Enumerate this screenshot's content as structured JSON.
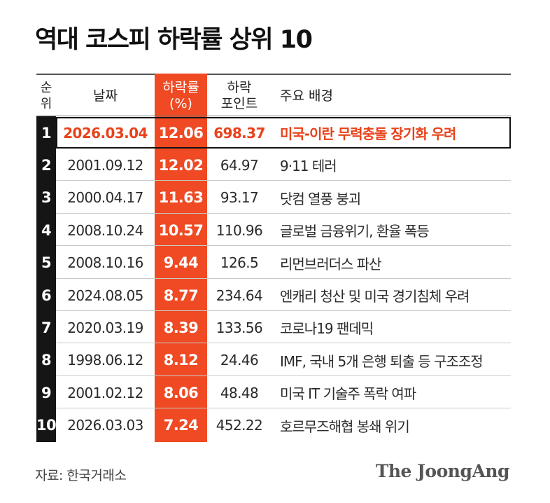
{
  "title": "역대 코스피 하락률 상위 10",
  "headers": {
    "rank": [
      "순",
      "위"
    ],
    "date": "날짜",
    "rate": [
      "하락률",
      "(%)"
    ],
    "points": [
      "하락",
      "포인트"
    ],
    "background": "주요 배경"
  },
  "colors": {
    "accent": "#ef4a23",
    "highlight_text": "#e8421b",
    "rank_column": "#151515"
  },
  "chart_data": {
    "type": "table",
    "title": "역대 코스피 하락률 상위 10",
    "columns": [
      "순위",
      "날짜",
      "하락률(%)",
      "하락 포인트",
      "주요 배경"
    ],
    "highlighted_row": 1,
    "rows": [
      {
        "rank": "1",
        "date": "2026.03.04",
        "rate": "12.06",
        "points": "698.37",
        "background": "미국-이란 무력충돌 장기화 우려"
      },
      {
        "rank": "2",
        "date": "2001.09.12",
        "rate": "12.02",
        "points": "64.97",
        "background": "9·11 테러"
      },
      {
        "rank": "3",
        "date": "2000.04.17",
        "rate": "11.63",
        "points": "93.17",
        "background": "닷컴 열풍 붕괴"
      },
      {
        "rank": "4",
        "date": "2008.10.24",
        "rate": "10.57",
        "points": "110.96",
        "background": "글로벌 금융위기, 환율 폭등"
      },
      {
        "rank": "5",
        "date": "2008.10.16",
        "rate": "9.44",
        "points": "126.5",
        "background": "리먼브러더스 파산"
      },
      {
        "rank": "6",
        "date": "2024.08.05",
        "rate": "8.77",
        "points": "234.64",
        "background": "엔캐리 청산 및 미국 경기침체 우려"
      },
      {
        "rank": "7",
        "date": "2020.03.19",
        "rate": "8.39",
        "points": "133.56",
        "background": "코로나19 팬데믹"
      },
      {
        "rank": "8",
        "date": "1998.06.12",
        "rate": "8.12",
        "points": "24.46",
        "background": "IMF, 국내 5개 은행 퇴출 등 구조조정"
      },
      {
        "rank": "9",
        "date": "2001.02.12",
        "rate": "8.06",
        "points": "48.48",
        "background": "미국 IT 기술주 폭락 여파"
      },
      {
        "rank": "10",
        "date": "2026.03.03",
        "rate": "7.24",
        "points": "452.22",
        "background": "호르무즈해협 봉쇄 위기"
      }
    ]
  },
  "footer": {
    "source": "자료: 한국거래소",
    "logo": "The JoongAng"
  }
}
